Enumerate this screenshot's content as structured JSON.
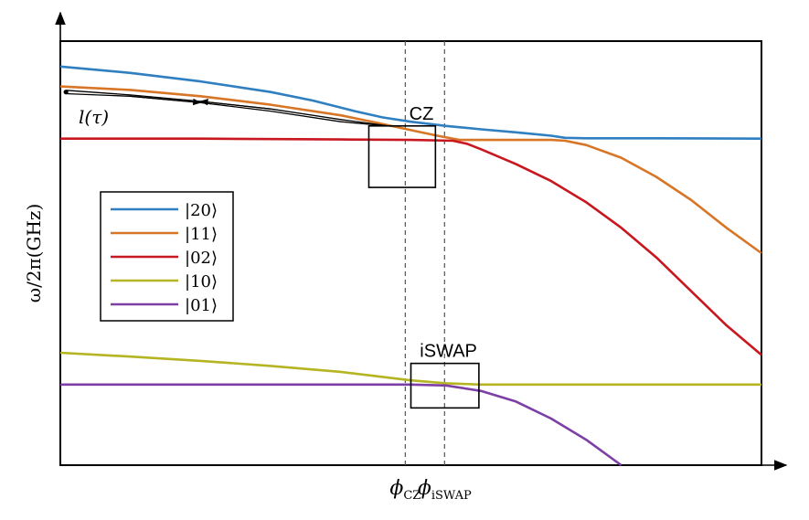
{
  "chart_data": {
    "type": "line",
    "title": "",
    "xlabel": "",
    "ylabel": "ω/2π(GHz)",
    "xlim": [
      0,
      1
    ],
    "ylim": [
      0,
      1
    ],
    "grid": false,
    "ticks_shown": false,
    "legend": {
      "position": "center-left",
      "frame": true
    },
    "vlines": [
      {
        "name": "phi-cz",
        "label_main": "ϕ",
        "label_sub": "CZ",
        "x": 0.492
      },
      {
        "name": "phi-iswap",
        "label_main": "ϕ",
        "label_sub": "iSWAP",
        "x": 0.548
      }
    ],
    "series": [
      {
        "name": "|20⟩",
        "color": "#2f7fc1",
        "points": [
          [
            0,
            0.94
          ],
          [
            0.1,
            0.925
          ],
          [
            0.2,
            0.905
          ],
          [
            0.3,
            0.88
          ],
          [
            0.36,
            0.86
          ],
          [
            0.42,
            0.835
          ],
          [
            0.46,
            0.82
          ],
          [
            0.5,
            0.81
          ],
          [
            0.55,
            0.8
          ],
          [
            0.6,
            0.792
          ],
          [
            0.65,
            0.785
          ],
          [
            0.7,
            0.777
          ],
          [
            0.72,
            0.772
          ],
          [
            0.75,
            0.771
          ],
          [
            0.85,
            0.771
          ],
          [
            1.0,
            0.77
          ]
        ]
      },
      {
        "name": "|11⟩",
        "color": "#d87627",
        "points": [
          [
            0,
            0.893
          ],
          [
            0.1,
            0.885
          ],
          [
            0.2,
            0.87
          ],
          [
            0.3,
            0.85
          ],
          [
            0.4,
            0.825
          ],
          [
            0.45,
            0.808
          ],
          [
            0.5,
            0.79
          ],
          [
            0.54,
            0.776
          ],
          [
            0.57,
            0.767
          ],
          [
            0.6,
            0.767
          ],
          [
            0.65,
            0.767
          ],
          [
            0.7,
            0.767
          ],
          [
            0.72,
            0.765
          ],
          [
            0.75,
            0.755
          ],
          [
            0.8,
            0.725
          ],
          [
            0.85,
            0.68
          ],
          [
            0.9,
            0.625
          ],
          [
            0.95,
            0.56
          ],
          [
            1.0,
            0.5
          ]
        ]
      },
      {
        "name": "|02⟩",
        "color": "#c8171e",
        "points": [
          [
            0,
            0.77
          ],
          [
            0.2,
            0.77
          ],
          [
            0.4,
            0.768
          ],
          [
            0.5,
            0.767
          ],
          [
            0.56,
            0.765
          ],
          [
            0.58,
            0.758
          ],
          [
            0.6,
            0.745
          ],
          [
            0.65,
            0.71
          ],
          [
            0.7,
            0.67
          ],
          [
            0.75,
            0.62
          ],
          [
            0.8,
            0.56
          ],
          [
            0.85,
            0.49
          ],
          [
            0.9,
            0.41
          ],
          [
            0.95,
            0.33
          ],
          [
            1.0,
            0.26
          ]
        ]
      },
      {
        "name": "|10⟩",
        "color": "#b5b423",
        "points": [
          [
            0,
            0.265
          ],
          [
            0.1,
            0.256
          ],
          [
            0.2,
            0.246
          ],
          [
            0.3,
            0.234
          ],
          [
            0.4,
            0.22
          ],
          [
            0.45,
            0.21
          ],
          [
            0.5,
            0.2
          ],
          [
            0.55,
            0.193
          ],
          [
            0.6,
            0.19
          ],
          [
            0.8,
            0.19
          ],
          [
            1.0,
            0.19
          ]
        ]
      },
      {
        "name": "|01⟩",
        "color": "#7d3fa5",
        "points": [
          [
            0,
            0.19
          ],
          [
            0.3,
            0.19
          ],
          [
            0.5,
            0.19
          ],
          [
            0.55,
            0.188
          ],
          [
            0.6,
            0.175
          ],
          [
            0.65,
            0.15
          ],
          [
            0.7,
            0.11
          ],
          [
            0.75,
            0.06
          ],
          [
            0.8,
            0.0
          ]
        ]
      }
    ],
    "annotations": [
      {
        "name": "cz-box",
        "label": "CZ",
        "box": [
          0.44,
          0.8,
          0.535,
          0.655
        ]
      },
      {
        "name": "iswap-box",
        "label": "iSWAP",
        "box": [
          0.5,
          0.24,
          0.597,
          0.135
        ]
      }
    ],
    "path_annotation": {
      "label": "l(τ)",
      "outgoing": [
        [
          0.008,
          0.876
        ],
        [
          0.1,
          0.87
        ],
        [
          0.2,
          0.855
        ],
        [
          0.3,
          0.835
        ],
        [
          0.4,
          0.81
        ],
        [
          0.468,
          0.8
        ]
      ],
      "return": [
        [
          0.468,
          0.8
        ],
        [
          0.4,
          0.815
        ],
        [
          0.3,
          0.84
        ],
        [
          0.2,
          0.858
        ],
        [
          0.1,
          0.873
        ],
        [
          0.008,
          0.884
        ]
      ]
    }
  }
}
